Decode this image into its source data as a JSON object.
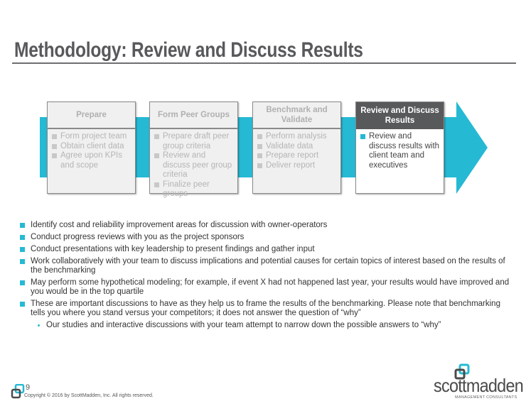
{
  "title": "Methodology: Review and Discuss Results",
  "colors": {
    "accent": "#25b9d4",
    "title": "#58595b",
    "active_header": "#58595b"
  },
  "process": {
    "active_step": 4,
    "steps": [
      {
        "label": "Prepare",
        "items": [
          "Form project team",
          "Obtain client data",
          "Agree upon KPIs and scope"
        ]
      },
      {
        "label": "Form Peer Groups",
        "items": [
          "Prepare draft peer group criteria",
          "Review and discuss peer group criteria",
          "Finalize peer groups"
        ]
      },
      {
        "label": "Benchmark and Validate",
        "items": [
          "Perform analysis",
          "Validate data",
          "Prepare report",
          "Deliver report"
        ]
      },
      {
        "label": "Review and Discuss Results",
        "items": [
          "Review and discuss results with client team and executives"
        ]
      }
    ]
  },
  "bullets": [
    "Identify cost and reliability improvement areas for discussion with owner-operators",
    "Conduct progress reviews with you as the project sponsors",
    "Conduct presentations with key leadership to present findings and gather input",
    "Work collaboratively with your team to discuss implications and potential causes for certain topics of interest based on the results of the benchmarking",
    "May perform some hypothetical modeling; for example, if event X had not happened last year, your results would have improved and you would be in the top quartile",
    "These are important discussions to have as they help us to frame the results of the benchmarking. Please note that benchmarking tells you where you stand versus your competitors; it does not answer the question of “why”"
  ],
  "sub_bullet": "Our studies and interactive discussions with your team attempt to narrow down the possible answers to “why”",
  "footer": {
    "page": "9",
    "copyright": "Copyright © 2016 by ScottMadden, Inc. All rights reserved."
  },
  "logo": {
    "name": "scottmadden",
    "tagline": "MANAGEMENT CONSULTANTS"
  }
}
